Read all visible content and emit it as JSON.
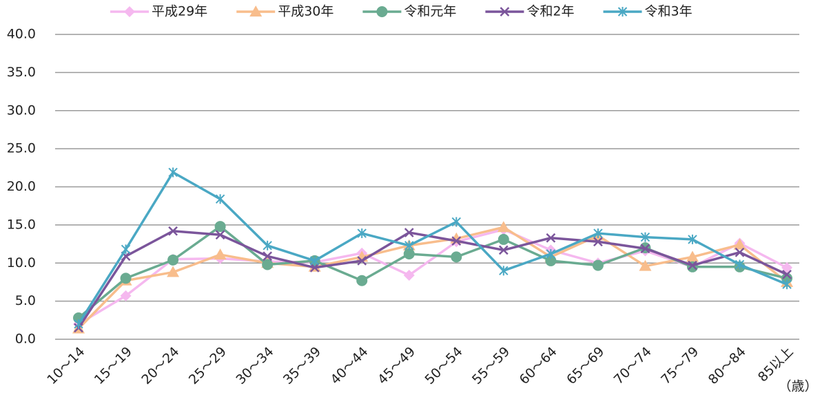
{
  "chart_data": {
    "type": "line",
    "categories": [
      "10～14",
      "15～19",
      "20～24",
      "25～29",
      "30～34",
      "35～39",
      "40～44",
      "45～49",
      "50～54",
      "55～59",
      "60～64",
      "65～69",
      "70～74",
      "75～79",
      "80～84",
      "85以上"
    ],
    "series": [
      {
        "name": "平成29年",
        "color": "#f5b8ef",
        "marker": "diamond",
        "values": [
          2.0,
          5.7,
          10.5,
          10.6,
          10.2,
          10.1,
          11.3,
          8.4,
          12.8,
          14.4,
          11.7,
          10.0,
          11.6,
          9.5,
          12.6,
          9.4
        ]
      },
      {
        "name": "平成30年",
        "color": "#f8bd8c",
        "marker": "triangle",
        "values": [
          1.4,
          7.7,
          8.8,
          11.1,
          10.0,
          9.5,
          10.8,
          12.3,
          13.2,
          14.7,
          10.8,
          13.6,
          9.6,
          10.8,
          12.4,
          7.5
        ]
      },
      {
        "name": "令和元年",
        "color": "#6aab91",
        "marker": "circle",
        "values": [
          2.8,
          8.0,
          10.4,
          14.8,
          9.8,
          10.3,
          7.7,
          11.2,
          10.8,
          13.1,
          10.3,
          9.7,
          12.0,
          9.5,
          9.5,
          8.0
        ]
      },
      {
        "name": "令和2年",
        "color": "#7b559b",
        "marker": "x",
        "values": [
          1.5,
          10.9,
          14.2,
          13.7,
          10.9,
          9.4,
          10.3,
          14.0,
          12.9,
          11.7,
          13.3,
          12.8,
          11.9,
          9.7,
          11.4,
          8.5
        ]
      },
      {
        "name": "令和3年",
        "color": "#4aa8c4",
        "marker": "asterisk",
        "values": [
          2.0,
          11.8,
          21.9,
          18.4,
          12.3,
          10.3,
          13.9,
          12.3,
          15.4,
          9.0,
          11.2,
          13.9,
          13.4,
          13.1,
          9.8,
          7.2
        ]
      }
    ],
    "ylim": [
      0,
      40
    ],
    "yticks": [
      {
        "value": 0,
        "label": "0.0"
      },
      {
        "value": 5,
        "label": "5.0"
      },
      {
        "value": 10,
        "label": "10.0"
      },
      {
        "value": 15,
        "label": "15.0"
      },
      {
        "value": 20,
        "label": "20.0"
      },
      {
        "value": 25,
        "label": "25.0"
      },
      {
        "value": 30,
        "label": "30.0"
      },
      {
        "value": 35,
        "label": "35.0"
      },
      {
        "value": 40,
        "label": "40.0"
      }
    ],
    "x_unit_label": "（歳）",
    "grid": true,
    "legend": "top"
  }
}
